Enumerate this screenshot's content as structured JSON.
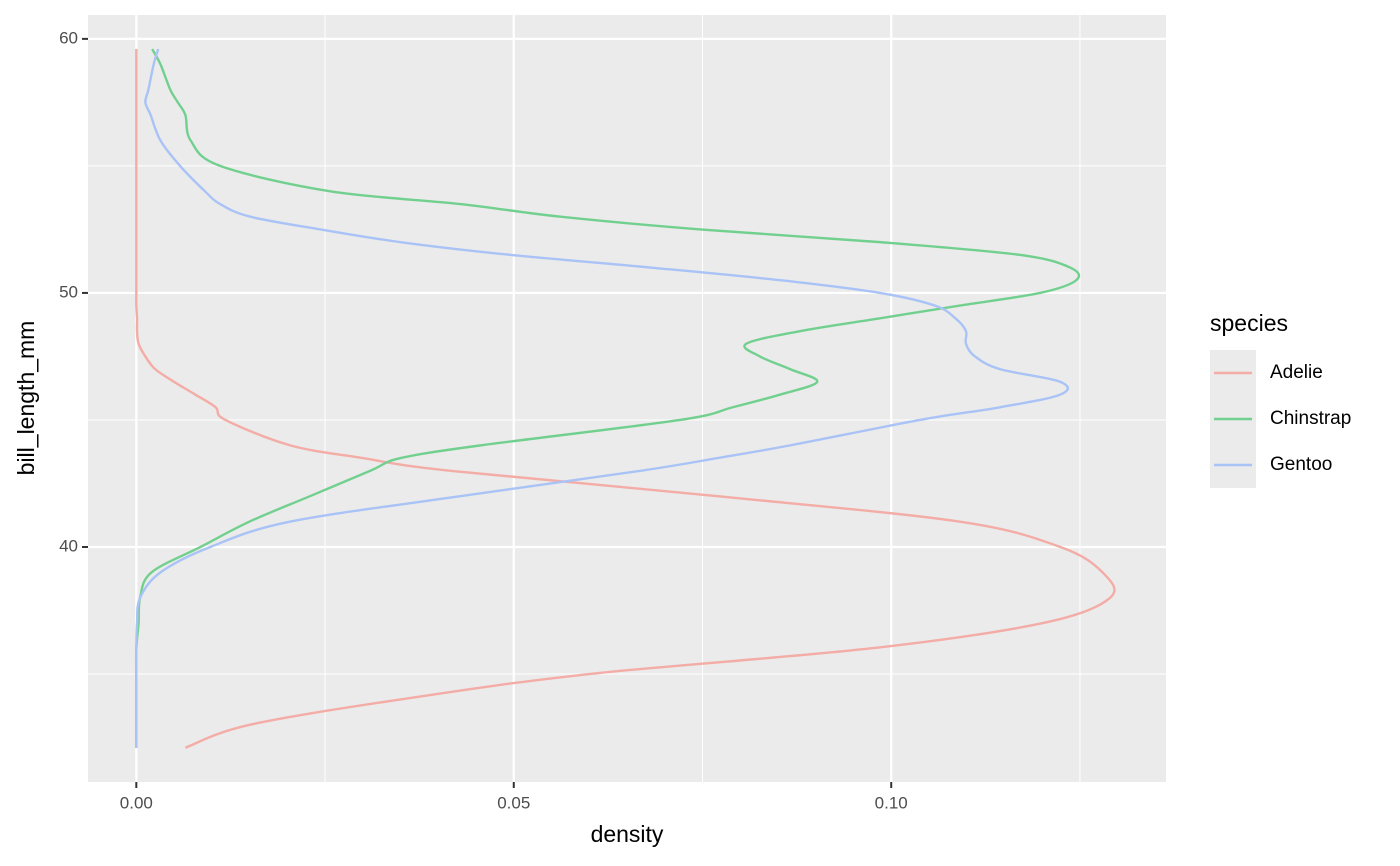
{
  "chart_data": {
    "type": "line",
    "x_label": "density",
    "y_label": "bill_length_mm",
    "legend_title": "species",
    "legend_position": "right",
    "y": [
      32.1,
      33,
      34,
      35,
      36,
      37,
      38,
      39,
      40,
      41,
      42,
      43,
      43.5,
      44,
      45,
      45.5,
      46,
      46.5,
      47,
      47.5,
      48,
      48.5,
      49,
      49.5,
      50,
      50.5,
      51,
      51.5,
      52,
      52.5,
      53,
      53.5,
      54,
      55,
      56,
      57,
      57.5,
      58,
      59,
      59.6
    ],
    "series": [
      {
        "name": "Adelie",
        "color": "#f3aca6",
        "values": [
          0.0065,
          0.015,
          0.035,
          0.06,
          0.097,
          0.12,
          0.129,
          0.128,
          0.1224,
          0.109,
          0.077,
          0.0416,
          0.03,
          0.0204,
          0.0118,
          0.0105,
          0.0078,
          0.005,
          0.0025,
          0.0012,
          0.0003,
          0.0001,
          0.0001,
          0,
          0,
          0,
          0,
          0,
          0,
          0,
          0,
          0,
          0,
          0,
          0,
          0,
          0,
          0,
          0,
          0
        ]
      },
      {
        "name": "Chinstrap",
        "color": "#72d08f",
        "values": [
          0,
          0,
          0,
          0,
          0,
          0.0003,
          0.0005,
          0.002,
          0.0085,
          0.015,
          0.023,
          0.031,
          0.035,
          0.0456,
          0.072,
          0.079,
          0.0853,
          0.0902,
          0.0866,
          0.0826,
          0.0808,
          0.088,
          0.0985,
          0.109,
          0.1197,
          0.1245,
          0.1237,
          0.117,
          0.0985,
          0.0747,
          0.0562,
          0.0429,
          0.0257,
          0.0111,
          0.0072,
          0.0065,
          0.0055,
          0.0045,
          0.0032,
          0.0021
        ]
      },
      {
        "name": "Gentoo",
        "color": "#a9c3f6",
        "values": [
          0,
          0,
          0,
          0,
          0,
          0.0001,
          0.0005,
          0.0032,
          0.0098,
          0.0204,
          0.0429,
          0.0668,
          0.077,
          0.0866,
          0.1038,
          0.1144,
          0.1224,
          0.1224,
          0.1144,
          0.1111,
          0.1099,
          0.1099,
          0.1085,
          0.1058,
          0.0985,
          0.0853,
          0.0681,
          0.0495,
          0.035,
          0.0244,
          0.0151,
          0.0111,
          0.0091,
          0.0058,
          0.0032,
          0.0019,
          0.0012,
          0.0016,
          0.0023,
          0.0029
        ]
      }
    ],
    "xlim": [
      -0.0064,
      0.1364
    ],
    "xticks": [
      {
        "value": 0,
        "label": "0.00"
      },
      {
        "value": 0.05,
        "label": "0.05"
      },
      {
        "value": 0.1,
        "label": "0.10"
      }
    ],
    "ylim": [
      30.75,
      60.94
    ],
    "yticks": [
      40,
      50,
      60
    ],
    "grid": true,
    "panel_background": "#ebebeb"
  }
}
